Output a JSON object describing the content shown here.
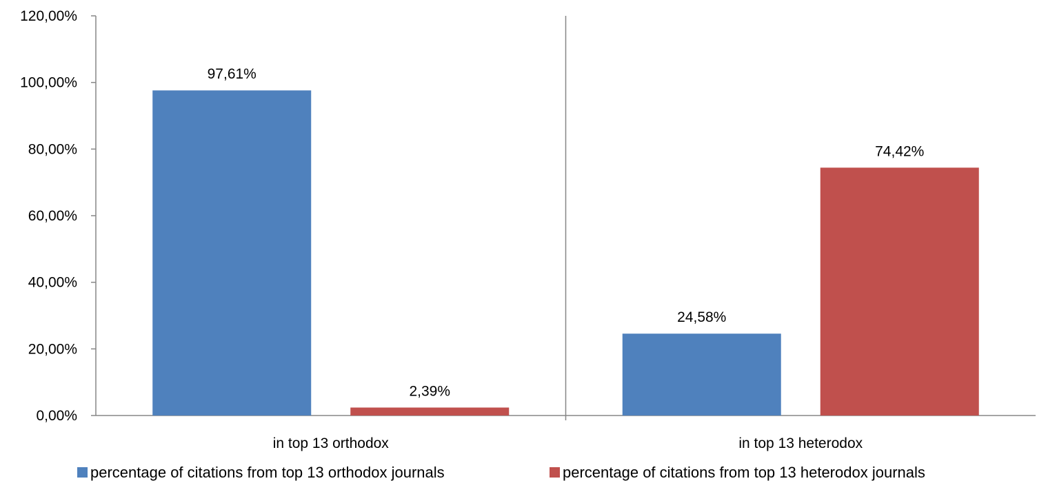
{
  "chart_data": {
    "type": "bar",
    "categories": [
      "in top 13 orthodox",
      "in top 13 heterodox"
    ],
    "series": [
      {
        "name": "percentage of citations from top 13 orthodox journals",
        "values": [
          97.61,
          24.58
        ],
        "labels": [
          "97,61%",
          "24,58%"
        ],
        "color": "#4F81BD"
      },
      {
        "name": "percentage of citations from top 13 heterodox journals",
        "values": [
          2.39,
          74.42
        ],
        "labels": [
          "2,39%",
          "74,42%"
        ],
        "color": "#C0504D"
      }
    ],
    "ylim": [
      0,
      120
    ],
    "yticks": [
      0,
      20,
      40,
      60,
      80,
      100,
      120
    ],
    "ytick_labels": [
      "0,00%",
      "20,00%",
      "40,00%",
      "60,00%",
      "80,00%",
      "100,00%",
      "120,00%"
    ],
    "title": "",
    "xlabel": "",
    "ylabel": "",
    "grid": false,
    "legend": {
      "position": "bottom"
    },
    "axis_color": "#868686"
  }
}
